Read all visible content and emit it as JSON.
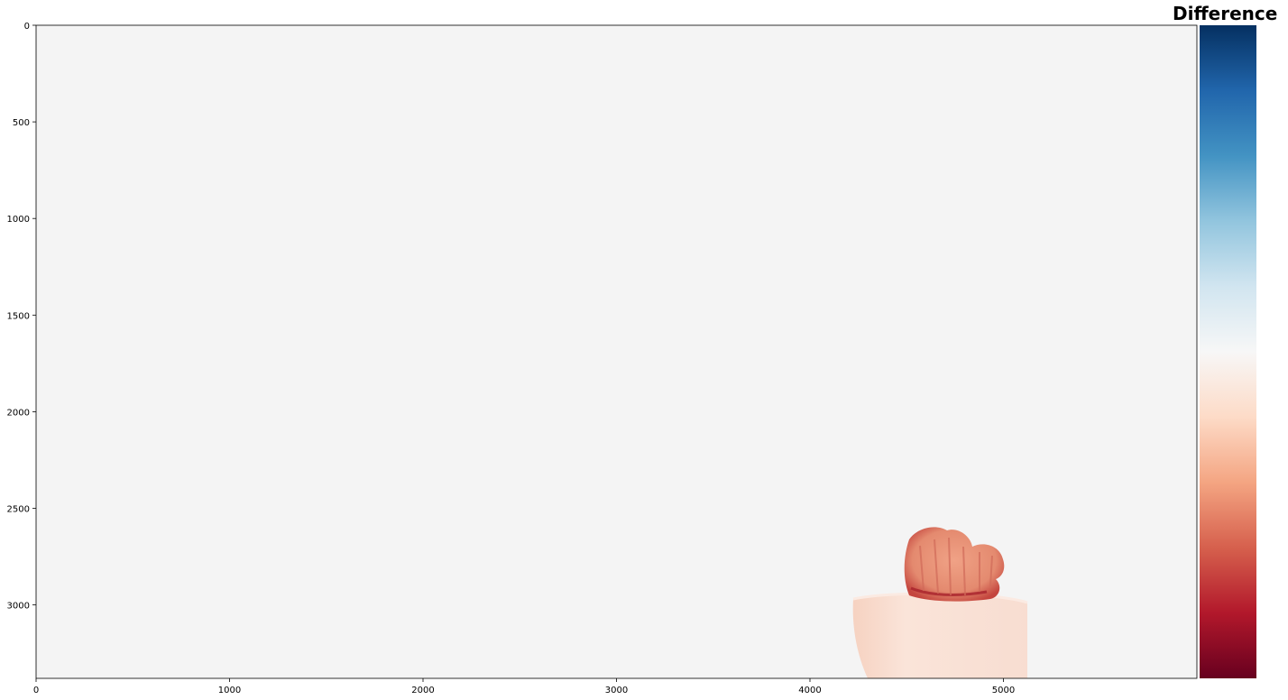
{
  "chart_data": {
    "type": "heatmap",
    "title": "Difference",
    "xlabel": "",
    "ylabel": "",
    "xlim": [
      0,
      6000
    ],
    "ylim": [
      3380,
      0
    ],
    "xticks": [
      "0",
      "1000",
      "2000",
      "3000",
      "4000",
      "5000"
    ],
    "yticks": [
      "0",
      "500",
      "1000",
      "1500",
      "2000",
      "2500",
      "3000"
    ],
    "colormap": "RdBu",
    "colorbar": {
      "position": "right",
      "ticks_shown": false
    },
    "background_value_color": "#f4f4f4",
    "features": [
      {
        "name": "cactus",
        "color": "#ec9a7f",
        "region": {
          "x": [
            4380,
            5010
          ],
          "y": [
            2600,
            3000
          ]
        }
      },
      {
        "name": "pot",
        "color": "#f8ddd1",
        "region": {
          "x": [
            4230,
            5120
          ],
          "y": [
            2960,
            3380
          ]
        }
      }
    ]
  }
}
